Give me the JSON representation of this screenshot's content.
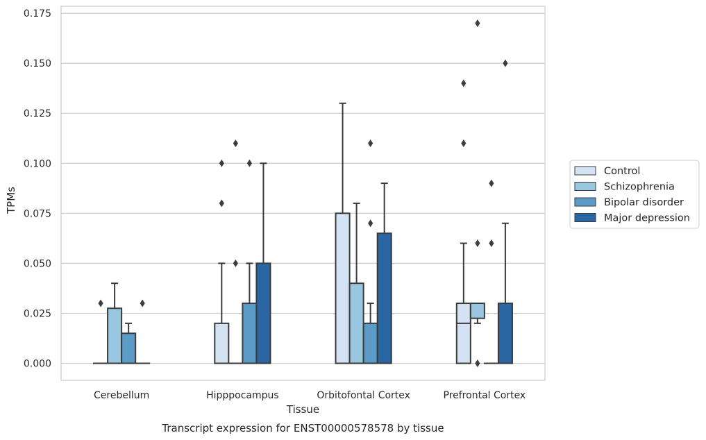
{
  "chart_data": {
    "type": "boxplot",
    "title": "",
    "caption": "Transcript expression for ENST00000578578 by tissue",
    "xlabel": "Tissue",
    "ylabel": "TPMs",
    "ylim": [
      -0.0085,
      0.1785
    ],
    "yticks": [
      0.0,
      0.025,
      0.05,
      0.075,
      0.1,
      0.125,
      0.15,
      0.175
    ],
    "ytick_labels": [
      "0.000",
      "0.025",
      "0.050",
      "0.075",
      "0.100",
      "0.125",
      "0.150",
      "0.175"
    ],
    "categories": [
      "Cerebellum",
      "Hipppocampus",
      "Orbitofontal Cortex",
      "Prefrontal Cortex"
    ],
    "grid": "horizontal",
    "legend_position": "right",
    "series": [
      {
        "name": "Control",
        "color": "#d3e3f3",
        "boxes": [
          {
            "q1": 0.0,
            "median": 0.0,
            "q3": 0.0,
            "whisker_low": 0.0,
            "whisker_high": 0.0,
            "outliers": [
              0.03
            ]
          },
          {
            "q1": 0.0,
            "median": 0.0,
            "q3": 0.02,
            "whisker_low": 0.0,
            "whisker_high": 0.05,
            "outliers": [
              0.08,
              0.1
            ]
          },
          {
            "q1": 0.0,
            "median": 0.0,
            "q3": 0.075,
            "whisker_low": 0.0,
            "whisker_high": 0.13,
            "outliers": []
          },
          {
            "q1": 0.0,
            "median": 0.02,
            "q3": 0.03,
            "whisker_low": 0.0,
            "whisker_high": 0.06,
            "outliers": [
              0.11,
              0.14
            ]
          }
        ]
      },
      {
        "name": "Schizophrenia",
        "color": "#9ac7e0",
        "boxes": [
          {
            "q1": 0.0,
            "median": 0.0,
            "q3": 0.0275,
            "whisker_low": 0.0,
            "whisker_high": 0.04,
            "outliers": []
          },
          {
            "q1": 0.0,
            "median": 0.0,
            "q3": 0.0,
            "whisker_low": 0.0,
            "whisker_high": 0.0,
            "outliers": [
              0.05,
              0.11
            ]
          },
          {
            "q1": 0.0,
            "median": 0.0,
            "q3": 0.04,
            "whisker_low": 0.0,
            "whisker_high": 0.08,
            "outliers": []
          },
          {
            "q1": 0.0225,
            "median": 0.03,
            "q3": 0.03,
            "whisker_low": 0.02,
            "whisker_high": 0.03,
            "outliers": [
              0.0,
              0.06,
              0.17
            ]
          }
        ]
      },
      {
        "name": "Bipolar disorder",
        "color": "#5b9bc8",
        "boxes": [
          {
            "q1": 0.0,
            "median": 0.0,
            "q3": 0.015,
            "whisker_low": 0.0,
            "whisker_high": 0.02,
            "outliers": []
          },
          {
            "q1": 0.0,
            "median": 0.0,
            "q3": 0.03,
            "whisker_low": 0.0,
            "whisker_high": 0.05,
            "outliers": [
              0.1
            ]
          },
          {
            "q1": 0.0,
            "median": 0.0,
            "q3": 0.02,
            "whisker_low": 0.0,
            "whisker_high": 0.03,
            "outliers": [
              0.07,
              0.11
            ]
          },
          {
            "q1": 0.0,
            "median": 0.0,
            "q3": 0.0,
            "whisker_low": 0.0,
            "whisker_high": 0.0,
            "outliers": [
              0.06,
              0.09
            ]
          }
        ]
      },
      {
        "name": "Major depression",
        "color": "#2966a3",
        "boxes": [
          {
            "q1": 0.0,
            "median": 0.0,
            "q3": 0.0,
            "whisker_low": 0.0,
            "whisker_high": 0.0,
            "outliers": [
              0.03
            ]
          },
          {
            "q1": 0.0,
            "median": 0.0,
            "q3": 0.05,
            "whisker_low": 0.0,
            "whisker_high": 0.1,
            "outliers": []
          },
          {
            "q1": 0.0,
            "median": 0.0,
            "q3": 0.065,
            "whisker_low": 0.0,
            "whisker_high": 0.09,
            "outliers": []
          },
          {
            "q1": 0.0,
            "median": 0.0,
            "q3": 0.03,
            "whisker_low": 0.0,
            "whisker_high": 0.07,
            "outliers": [
              0.15
            ]
          }
        ]
      }
    ]
  }
}
